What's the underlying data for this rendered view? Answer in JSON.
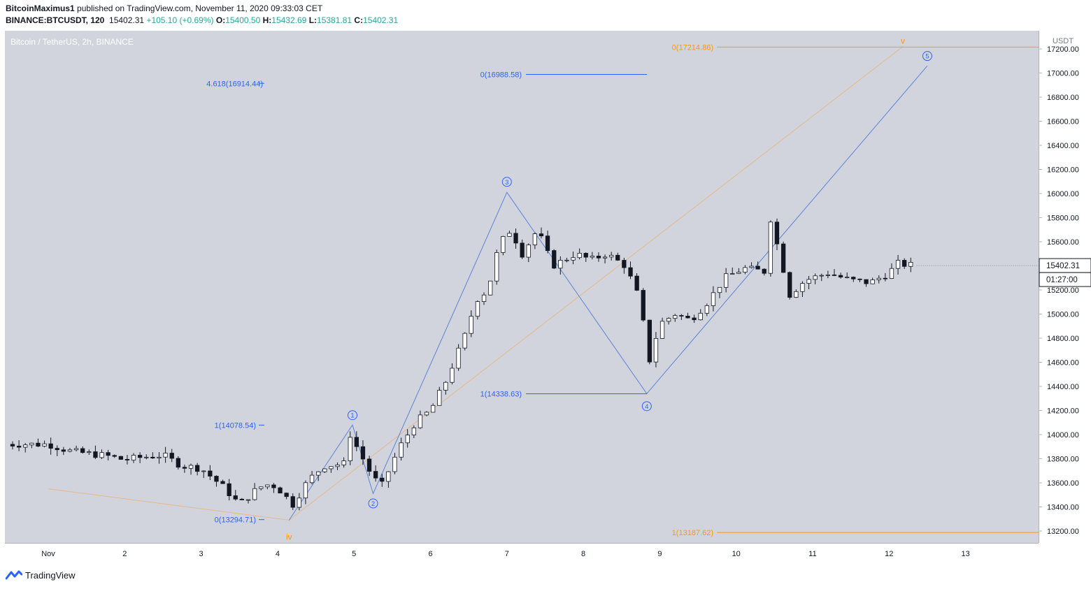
{
  "header": {
    "author": "BitcoinMaximus1",
    "published_text": "published on TradingView.com, November 11, 2020 09:33:03 CET",
    "symbol": "BINANCE:BTCUSDT, 120",
    "price": "15402.31",
    "change": "+105.10 (+0.69%)",
    "o_label": "O:",
    "o_value": "15400.50",
    "h_label": "H:",
    "h_value": "15432.69",
    "l_label": "L:",
    "l_value": "15381.81",
    "c_label": "C:",
    "c_value": "15402.31"
  },
  "chart_title": "Bitcoin / TetherUS, 2h, BINANCE",
  "footer": {
    "brand": "TradingView"
  },
  "colors": {
    "bg": "#d1d4dc",
    "blue": "#2962ff",
    "orange": "#ff9800",
    "candle_up": "#ffffff",
    "candle_down": "#131722"
  },
  "chart_data": {
    "type": "candlestick",
    "interval": "2h",
    "y_unit": "USDT",
    "ylim": [
      13100,
      17300
    ],
    "ytick_labels": [
      "13200.00",
      "13400.00",
      "13600.00",
      "13800.00",
      "14000.00",
      "14200.00",
      "14400.00",
      "14600.00",
      "14800.00",
      "15000.00",
      "15200.00",
      "15400.00",
      "15600.00",
      "15800.00",
      "16000.00",
      "16200.00",
      "16400.00",
      "16600.00",
      "16800.00",
      "17000.00",
      "17200.00"
    ],
    "xtick_labels": [
      "Nov",
      "2",
      "3",
      "4",
      "5",
      "6",
      "7",
      "8",
      "9",
      "10",
      "11",
      "12",
      "13"
    ],
    "x_range_days": [
      0.0,
      13.0
    ],
    "last_price_label": "15402.31",
    "countdown_label": "01:27:00",
    "close_path": [
      [
        0.0,
        13920
      ],
      [
        0.3,
        13860
      ],
      [
        0.8,
        13820
      ],
      [
        1.0,
        13790
      ],
      [
        1.2,
        13810
      ],
      [
        1.5,
        13830
      ],
      [
        1.75,
        13740
      ],
      [
        2.0,
        13720
      ],
      [
        2.3,
        13560
      ],
      [
        2.5,
        13420
      ],
      [
        2.75,
        13560
      ],
      [
        2.9,
        13590
      ],
      [
        3.0,
        13560
      ],
      [
        3.2,
        13420
      ],
      [
        3.4,
        13620
      ],
      [
        3.6,
        13740
      ],
      [
        3.9,
        13760
      ],
      [
        3.95,
        14000
      ],
      [
        4.2,
        13700
      ],
      [
        4.35,
        13560
      ],
      [
        4.6,
        13900
      ],
      [
        4.8,
        14100
      ],
      [
        5.0,
        14200
      ],
      [
        5.2,
        14440
      ],
      [
        5.45,
        14820
      ],
      [
        5.6,
        15120
      ],
      [
        5.75,
        15200
      ],
      [
        5.9,
        15580
      ],
      [
        6.05,
        15700
      ],
      [
        6.2,
        15500
      ],
      [
        6.4,
        15700
      ],
      [
        6.6,
        15400
      ],
      [
        6.9,
        15500
      ],
      [
        7.1,
        15450
      ],
      [
        7.3,
        15500
      ],
      [
        7.55,
        15400
      ],
      [
        7.75,
        15100
      ],
      [
        7.85,
        14580
      ],
      [
        8.0,
        14920
      ],
      [
        8.2,
        15000
      ],
      [
        8.4,
        14950
      ],
      [
        8.6,
        15080
      ],
      [
        8.85,
        15300
      ],
      [
        9.1,
        15380
      ],
      [
        9.4,
        15350
      ],
      [
        9.45,
        15790
      ],
      [
        9.7,
        15160
      ],
      [
        9.9,
        15280
      ],
      [
        10.2,
        15340
      ],
      [
        10.5,
        15280
      ],
      [
        10.75,
        15260
      ],
      [
        11.0,
        15340
      ],
      [
        11.1,
        15420
      ],
      [
        11.35,
        15400
      ]
    ],
    "fib_levels": [
      {
        "label": "4.618(16914.44)",
        "value": 16914.44,
        "color": "blue"
      },
      {
        "label": "0(16988.58)",
        "value": 16988.58,
        "color": "blue"
      },
      {
        "label": "1(14338.63)",
        "value": 14338.63,
        "color": "blue"
      },
      {
        "label": "1(14078.54)",
        "value": 14078.54,
        "color": "blue"
      },
      {
        "label": "0(13294.71)",
        "value": 13294.71,
        "color": "blue"
      },
      {
        "label": "0(17214.86)",
        "value": 17214.86,
        "color": "orange"
      },
      {
        "label": "1(13187.62)",
        "value": 13187.62,
        "color": "orange"
      }
    ],
    "wave_labels": [
      {
        "label": "1",
        "day": 3.98,
        "price": 14080
      },
      {
        "label": "2",
        "day": 4.25,
        "price": 13510
      },
      {
        "label": "3",
        "day": 6.0,
        "price": 16010
      },
      {
        "label": "4",
        "day": 7.83,
        "price": 14340
      },
      {
        "label": "5",
        "day": 11.5,
        "price": 17060
      },
      {
        "label": "iv",
        "day": 3.15,
        "price": 13290
      },
      {
        "label": "v",
        "day": 11.18,
        "price": 17220
      }
    ],
    "blue_wave_path": [
      [
        3.15,
        13290
      ],
      [
        3.98,
        14080
      ],
      [
        4.25,
        13510
      ],
      [
        6.0,
        16010
      ],
      [
        7.83,
        14340
      ],
      [
        11.5,
        17060
      ]
    ],
    "orange_wave_path": [
      [
        0.0,
        13550
      ],
      [
        3.15,
        13290
      ],
      [
        11.18,
        17220
      ]
    ]
  }
}
